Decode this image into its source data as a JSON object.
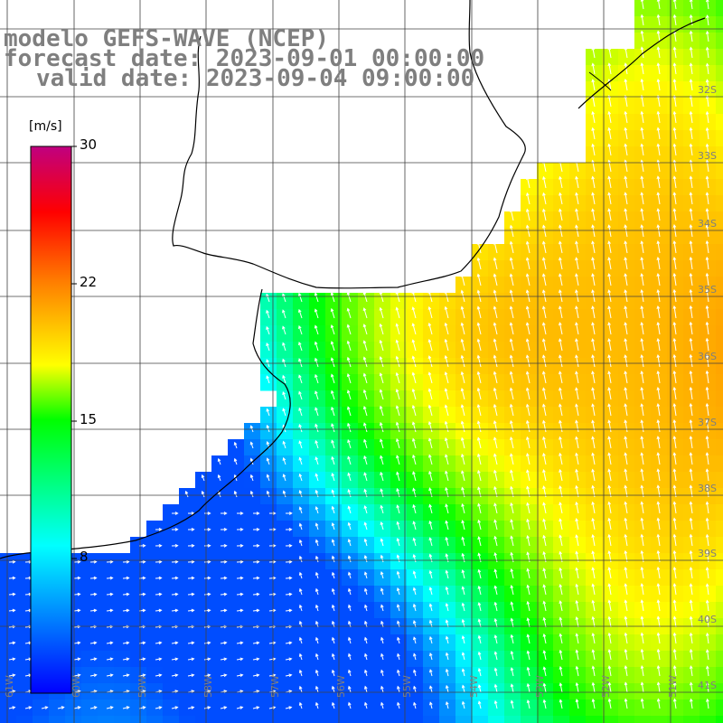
{
  "title": {
    "model": "modelo GEFS-WAVE (NCEP)",
    "forecast": "forecast date: 2023-09-01 00:00:00",
    "valid": "valid date: 2023-09-04 09:00:00"
  },
  "colorbar": {
    "unit": "[m/s]",
    "ticks": [
      "30",
      "22",
      "15",
      "8"
    ],
    "range": [
      0,
      30
    ],
    "colors": [
      "#0000ff",
      "#00ffff",
      "#00ff00",
      "#ffff00",
      "#ff8000",
      "#ff0000",
      "#c00080"
    ]
  },
  "map_labels": {
    "lat_right": [
      "32S",
      "33S",
      "34S",
      "35S",
      "36S",
      "37S",
      "38S",
      "39S",
      "40S",
      "41S"
    ],
    "lon_bottom": [
      "61W",
      "60W",
      "59W",
      "58W",
      "57W",
      "56W",
      "55W",
      "54W",
      "53W",
      "52W",
      "51W"
    ]
  },
  "colors": {
    "grid": "#404040",
    "coast": "#000000",
    "arrow": "#ffffff",
    "label": "#7f7f7f"
  }
}
